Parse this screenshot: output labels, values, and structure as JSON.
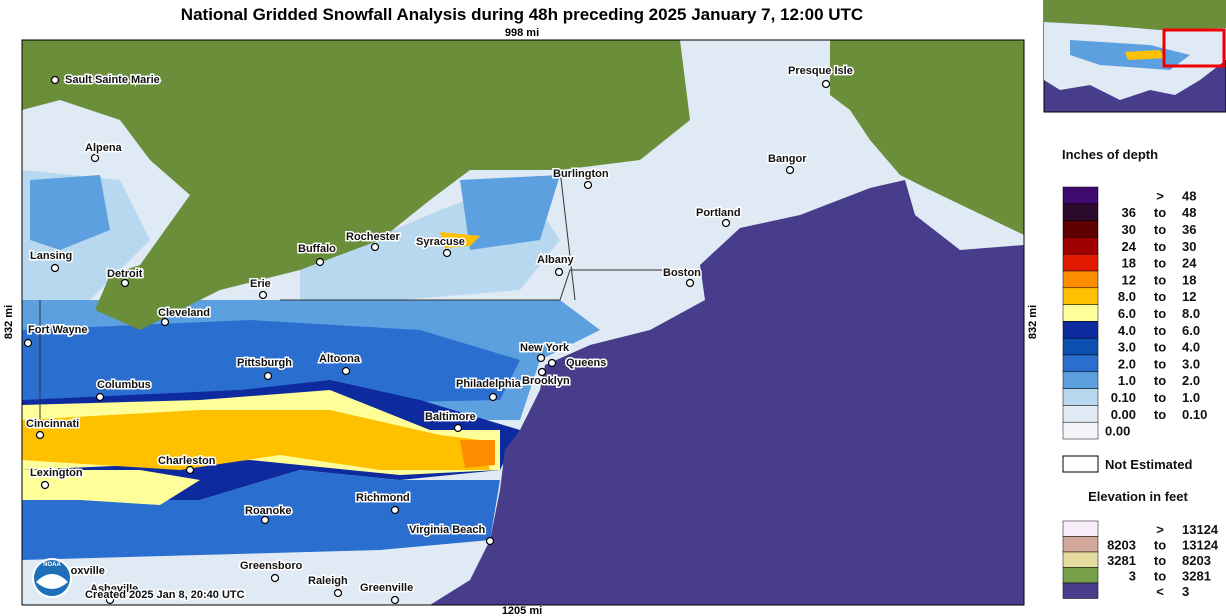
{
  "title": "National Gridded Snowfall Analysis during 48h preceding 2025 January 7, 12:00 UTC",
  "scale": {
    "top": "998 mi",
    "bottom": "1205 mi",
    "left": "832 mi",
    "right": "832 mi"
  },
  "credit": "Created 2025 Jan 8, 20:40 UTC",
  "logo": "NOAA",
  "map": {
    "cities": [
      {
        "name": "Sault Sainte Marie"
      },
      {
        "name": "Alpena"
      },
      {
        "name": "Lansing"
      },
      {
        "name": "Detroit"
      },
      {
        "name": "Fort Wayne"
      },
      {
        "name": "Cleveland"
      },
      {
        "name": "Buffalo"
      },
      {
        "name": "Rochester"
      },
      {
        "name": "Syracuse"
      },
      {
        "name": "Erie"
      },
      {
        "name": "Burlington"
      },
      {
        "name": "Albany"
      },
      {
        "name": "Presque Isle"
      },
      {
        "name": "Bangor"
      },
      {
        "name": "Portland"
      },
      {
        "name": "Boston"
      },
      {
        "name": "New York"
      },
      {
        "name": "Queens"
      },
      {
        "name": "Brooklyn"
      },
      {
        "name": "Philadelphia"
      },
      {
        "name": "Pittsburgh"
      },
      {
        "name": "Altoona"
      },
      {
        "name": "Columbus"
      },
      {
        "name": "Baltimore"
      },
      {
        "name": "Cincinnati"
      },
      {
        "name": "Charleston"
      },
      {
        "name": "Lexington"
      },
      {
        "name": "Richmond"
      },
      {
        "name": "Roanoke"
      },
      {
        "name": "Virginia Beach"
      },
      {
        "name": "Greensboro"
      },
      {
        "name": "Raleigh"
      },
      {
        "name": "Greenville"
      },
      {
        "name": "Knoxville"
      },
      {
        "name": "Asheville"
      }
    ]
  },
  "legend": {
    "snow": {
      "title": "Inches of depth",
      "rows": [
        {
          "sep": ">",
          "high": "48",
          "color": "#3f0a6e"
        },
        {
          "low": "36",
          "sep": "to",
          "high": "48",
          "color": "#2b0a2b"
        },
        {
          "low": "30",
          "sep": "to",
          "high": "36",
          "color": "#5c0000"
        },
        {
          "low": "24",
          "sep": "to",
          "high": "30",
          "color": "#a00000"
        },
        {
          "low": "18",
          "sep": "to",
          "high": "24",
          "color": "#e21a00"
        },
        {
          "low": "12",
          "sep": "to",
          "high": "18",
          "color": "#ff8c00"
        },
        {
          "low": "8.0",
          "sep": "to",
          "high": "12",
          "color": "#ffc000"
        },
        {
          "low": "6.0",
          "sep": "to",
          "high": "8.0",
          "color": "#ffff99"
        },
        {
          "low": "4.0",
          "sep": "to",
          "high": "6.0",
          "color": "#0d2a9e"
        },
        {
          "low": "3.0",
          "sep": "to",
          "high": "4.0",
          "color": "#0b4fb0"
        },
        {
          "low": "2.0",
          "sep": "to",
          "high": "3.0",
          "color": "#2a6fd0"
        },
        {
          "low": "1.0",
          "sep": "to",
          "high": "2.0",
          "color": "#5da0e0"
        },
        {
          "low": "0.10",
          "sep": "to",
          "high": "1.0",
          "color": "#b8d8ef"
        },
        {
          "low": "0.00",
          "sep": "to",
          "high": "0.10",
          "color": "#dfeaf4"
        },
        {
          "low": "0.00",
          "color": "#f4f4fb"
        }
      ]
    },
    "not_estimated": "Not Estimated",
    "elevation": {
      "title": "Elevation in feet",
      "rows": [
        {
          "sep": ">",
          "high": "13124",
          "color": "#f8eefa"
        },
        {
          "low": "8203",
          "sep": "to",
          "high": "13124",
          "color": "#d3a89a"
        },
        {
          "low": "3281",
          "sep": "to",
          "high": "8203",
          "color": "#e6dca0"
        },
        {
          "low": "3",
          "sep": "to",
          "high": "3281",
          "color": "#77a04a"
        },
        {
          "sep": "<",
          "high": "3",
          "color": "#483d8b"
        }
      ]
    }
  }
}
